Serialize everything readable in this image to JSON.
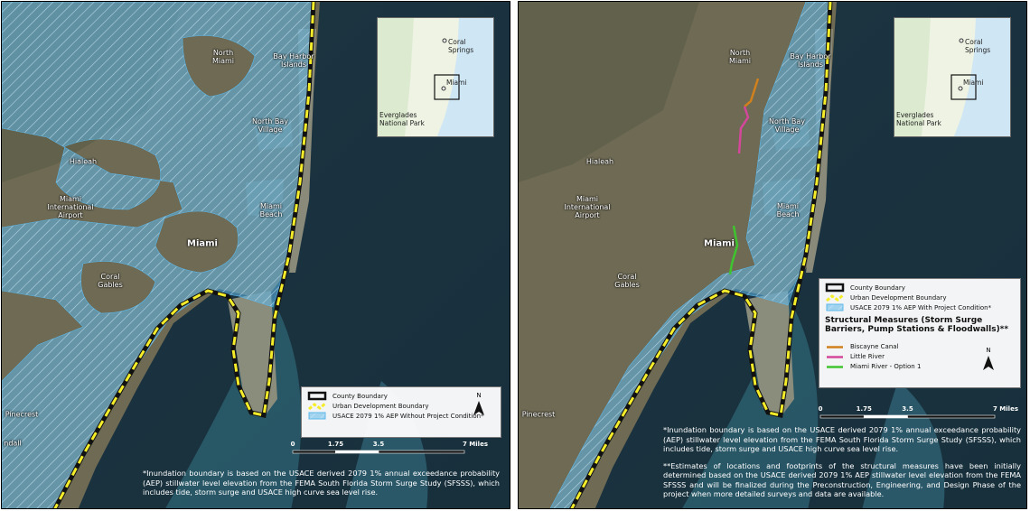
{
  "maps": [
    {
      "place_labels": [
        "North Miami",
        "Bay Harbor Islands",
        "North Bay Village",
        "Hialeah",
        "Miami International Airport",
        "Miami Beach",
        "Miami",
        "Coral Gables",
        "Pinecrest",
        "ndall"
      ],
      "inset_labels": [
        "Coral Springs",
        "Miami",
        "Everglades National Park"
      ],
      "legend": [
        "County Boundary",
        "Urban Development Boundary",
        "USACE 2079 1% AEP Without Project Condition*"
      ],
      "north": "N",
      "scale": [
        "0",
        "1.75",
        "3.5",
        "7 Miles"
      ],
      "footnotes": [
        "*Inundation boundary is based on the USACE derived 2079 1% annual exceedance probability (AEP) stillwater level elevation from the FEMA South Florida Storm Surge Study (SFSSS), which includes tide, storm surge and USACE high curve sea level rise."
      ]
    },
    {
      "place_labels": [
        "North Miami",
        "Bay Harbor Islands",
        "North Bay Village",
        "Hialeah",
        "Miami International Airport",
        "Miami Beach",
        "Miami",
        "Coral Gables",
        "Pinecrest"
      ],
      "inset_labels": [
        "Coral Springs",
        "Miami",
        "Everglades National Park"
      ],
      "legend": [
        "County Boundary",
        "Urban Development Boundary",
        "USACE 2079 1% AEP With Project Condition*"
      ],
      "legend_heading": "Structural Measures (Storm Surge Barriers, Pump Stations & Floodwalls)**",
      "measures": [
        "Biscayne Canal",
        "Little River",
        "Miami River - Option 1"
      ],
      "north": "N",
      "scale": [
        "0",
        "1.75",
        "3.5",
        "7 Miles"
      ],
      "footnotes": [
        "*Inundation boundary is based on the USACE derived 2079 1% annual exceedance probability (AEP) stillwater level elevation from the FEMA South Florida Storm Surge Study (SFSSS), which includes tide, storm surge and USACE high curve sea level rise.",
        "**Estimates of locations and footprints of the structural measures have been initially determined based on the USACE derived 2079 1% AEP stillwater level elevation from the FEMA SFSSS and will be finalized during the Preconstruction, Engineering, and Design Phase of the project when more detailed surveys and data are available."
      ]
    }
  ]
}
